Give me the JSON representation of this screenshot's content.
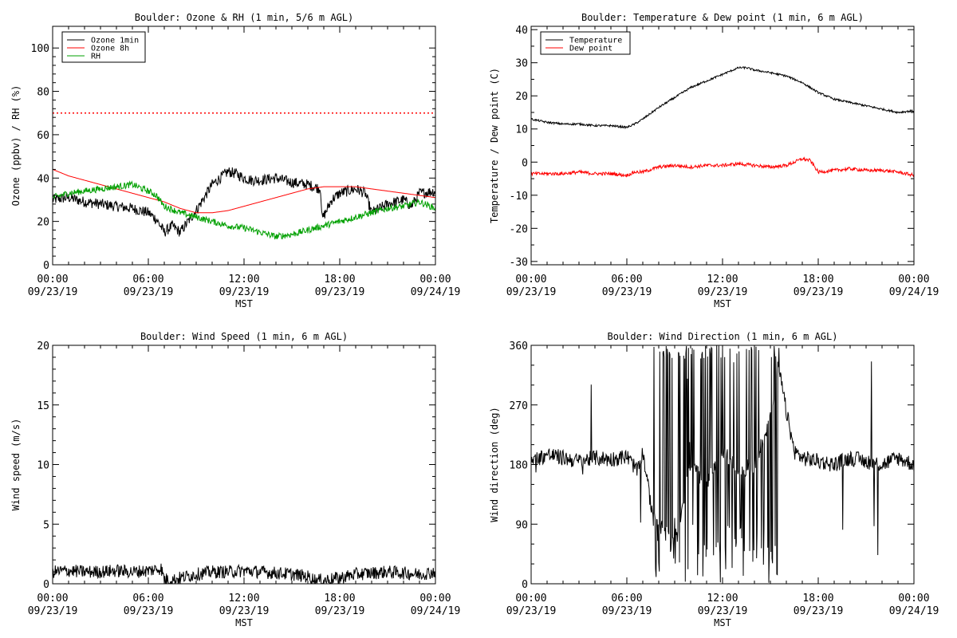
{
  "chart_data": [
    {
      "type": "line",
      "title": "Boulder: Ozone & RH (1 min, 5/6 m AGL)",
      "xlabel": "MST",
      "ylabel": "Ozone (ppbv) / RH (%)",
      "xlim": [
        0,
        24
      ],
      "ylim": [
        0,
        110
      ],
      "x_ticks": [
        {
          "value": 0,
          "time": "00:00",
          "date": "09/23/19"
        },
        {
          "value": 6,
          "time": "06:00",
          "date": "09/23/19"
        },
        {
          "value": 12,
          "time": "12:00",
          "date": "09/23/19"
        },
        {
          "value": 18,
          "time": "18:00",
          "date": "09/23/19"
        },
        {
          "value": 24,
          "time": "00:00",
          "date": "09/24/19"
        }
      ],
      "y_ticks": [
        0,
        20,
        40,
        60,
        80,
        100
      ],
      "legend": "top-left",
      "reference_line": {
        "y": 70,
        "color": "#ff0000",
        "style": "dotted"
      },
      "series": [
        {
          "name": "Ozone 1min",
          "color": "#000000",
          "noise": 2.5,
          "x": [
            0,
            1,
            2,
            3,
            4,
            5,
            6,
            6.5,
            7,
            7.5,
            8,
            8.5,
            9,
            9.5,
            10,
            10.5,
            11,
            11.5,
            12,
            12.5,
            13,
            14,
            15,
            16,
            16.8,
            16.9,
            17.5,
            18,
            19,
            19.6,
            20,
            21,
            22,
            22.5,
            23,
            24
          ],
          "y": [
            30,
            31,
            29,
            28,
            27,
            26,
            24,
            21,
            15,
            18,
            15,
            20,
            25,
            31,
            37,
            40,
            43,
            42,
            40,
            39,
            39,
            40,
            38,
            37,
            35,
            21,
            30,
            33,
            35,
            33,
            24,
            28,
            30,
            27,
            33,
            34
          ]
        },
        {
          "name": "Ozone 8h",
          "color": "#ff0000",
          "noise": 0,
          "x": [
            0,
            1,
            2,
            3,
            4,
            5,
            6,
            7,
            8,
            9,
            10,
            11,
            12,
            13,
            14,
            15,
            16,
            17,
            18,
            19,
            20,
            21,
            22,
            23,
            24
          ],
          "y": [
            44,
            41,
            39,
            37,
            35,
            33,
            31,
            29,
            26,
            24,
            24,
            25,
            27,
            29,
            31,
            33,
            35,
            36,
            36,
            36,
            35,
            34,
            33,
            32,
            31
          ]
        },
        {
          "name": "RH",
          "color": "#00a000",
          "noise": 1.5,
          "x": [
            0,
            1,
            2,
            3,
            4,
            5,
            6,
            6.5,
            7,
            8,
            9,
            10,
            11,
            12,
            13,
            14,
            15,
            16,
            17,
            18,
            19,
            20,
            21,
            22,
            23,
            24
          ],
          "y": [
            31,
            33,
            34,
            35,
            36,
            37,
            34,
            32,
            27,
            24,
            22,
            20,
            18,
            17,
            15,
            13,
            14,
            16,
            18,
            20,
            22,
            24,
            26,
            27,
            29,
            26
          ]
        }
      ]
    },
    {
      "type": "line",
      "title": "Boulder: Temperature & Dew point (1 min, 6 m AGL)",
      "xlabel": "MST",
      "ylabel": "Temperature / Dew point (C)",
      "xlim": [
        0,
        24
      ],
      "ylim": [
        -31,
        41
      ],
      "x_ticks": [
        {
          "value": 0,
          "time": "00:00",
          "date": "09/23/19"
        },
        {
          "value": 6,
          "time": "06:00",
          "date": "09/23/19"
        },
        {
          "value": 12,
          "time": "12:00",
          "date": "09/23/19"
        },
        {
          "value": 18,
          "time": "18:00",
          "date": "09/23/19"
        },
        {
          "value": 24,
          "time": "00:00",
          "date": "09/24/19"
        }
      ],
      "y_ticks": [
        -30,
        -20,
        -10,
        0,
        10,
        20,
        30,
        40
      ],
      "legend": "top-left",
      "series": [
        {
          "name": "Temperature",
          "color": "#000000",
          "noise": 0.3,
          "x": [
            0,
            1,
            2,
            3,
            4,
            5,
            6,
            6.5,
            7,
            8,
            9,
            10,
            11,
            12,
            12.5,
            13,
            13.5,
            14,
            15,
            16,
            17,
            18,
            19,
            20,
            21,
            22,
            23,
            24
          ],
          "y": [
            13,
            12,
            11.5,
            11.5,
            11,
            11,
            10.5,
            11.5,
            13,
            16.5,
            19.5,
            22.5,
            24.5,
            26.5,
            27.5,
            28.5,
            28.5,
            27.8,
            27,
            26,
            24,
            21,
            19,
            18,
            17,
            16,
            15,
            15.5
          ]
        },
        {
          "name": "Dew point",
          "color": "#ff0000",
          "noise": 0.5,
          "x": [
            0,
            1,
            2,
            3,
            4,
            5,
            6,
            6.5,
            7,
            8,
            9,
            10,
            11,
            12,
            13,
            14,
            15,
            16,
            17,
            17.5,
            18,
            19,
            20,
            21,
            22,
            23,
            24
          ],
          "y": [
            -3.5,
            -3.5,
            -3.5,
            -3,
            -3.5,
            -3.5,
            -4,
            -3,
            -3,
            -1.5,
            -1,
            -1.5,
            -1,
            -1,
            -0.5,
            -1,
            -1.5,
            -1,
            1,
            0.5,
            -3,
            -2.5,
            -2,
            -2.5,
            -2.5,
            -3,
            -4
          ]
        }
      ]
    },
    {
      "type": "line",
      "title": "Boulder: Wind Speed (1 min, 6 m AGL)",
      "xlabel": "MST",
      "ylabel": "Wind speed (m/s)",
      "xlim": [
        0,
        24
      ],
      "ylim": [
        0,
        20
      ],
      "x_ticks": [
        {
          "value": 0,
          "time": "00:00",
          "date": "09/23/19"
        },
        {
          "value": 6,
          "time": "06:00",
          "date": "09/23/19"
        },
        {
          "value": 12,
          "time": "12:00",
          "date": "09/23/19"
        },
        {
          "value": 18,
          "time": "18:00",
          "date": "09/23/19"
        },
        {
          "value": 24,
          "time": "00:00",
          "date": "09/24/19"
        }
      ],
      "y_ticks": [
        0,
        5,
        10,
        15,
        20
      ],
      "series": [
        {
          "name": "",
          "color": "#000000",
          "noise": 0.55,
          "x": [
            0,
            1,
            2,
            3,
            4,
            5,
            6,
            6.8,
            7,
            7.5,
            8,
            9,
            10,
            11,
            12,
            13,
            14,
            15,
            16,
            16.5,
            17,
            18,
            19,
            20,
            21,
            22,
            23,
            24
          ],
          "y": [
            1,
            1.1,
            1,
            1,
            1.1,
            1,
            1.1,
            1.3,
            0.4,
            0.3,
            0.5,
            0.8,
            1,
            1,
            1.1,
            1,
            0.9,
            0.8,
            0.6,
            0.3,
            0.3,
            0.5,
            0.8,
            0.9,
            1,
            0.9,
            0.8,
            1
          ]
        }
      ]
    },
    {
      "type": "line",
      "title": "Boulder: Wind Direction (1 min, 6 m AGL)",
      "xlabel": "MST",
      "ylabel": "Wind direction (deg)",
      "xlim": [
        0,
        24
      ],
      "ylim": [
        0,
        360
      ],
      "x_ticks": [
        {
          "value": 0,
          "time": "00:00",
          "date": "09/23/19"
        },
        {
          "value": 6,
          "time": "06:00",
          "date": "09/23/19"
        },
        {
          "value": 12,
          "time": "12:00",
          "date": "09/23/19"
        },
        {
          "value": 18,
          "time": "18:00",
          "date": "09/23/19"
        },
        {
          "value": 24,
          "time": "00:00",
          "date": "09/24/19"
        }
      ],
      "y_ticks": [
        0,
        90,
        180,
        270,
        360
      ],
      "series": [
        {
          "name": "",
          "color": "#000000",
          "noise": 12,
          "x": [
            0,
            1,
            2,
            3,
            4,
            5,
            6,
            6.7,
            7,
            7.5,
            8,
            9,
            10,
            11,
            12,
            13,
            14,
            15,
            15.5,
            16,
            16.5,
            17,
            18,
            19,
            20,
            21,
            22,
            23,
            24
          ],
          "y": [
            185,
            195,
            190,
            185,
            190,
            188,
            192,
            170,
            200,
            120,
            90,
            60,
            180,
            150,
            200,
            170,
            180,
            250,
            330,
            260,
            200,
            190,
            185,
            180,
            190,
            185,
            180,
            190,
            180
          ]
        }
      ]
    }
  ]
}
